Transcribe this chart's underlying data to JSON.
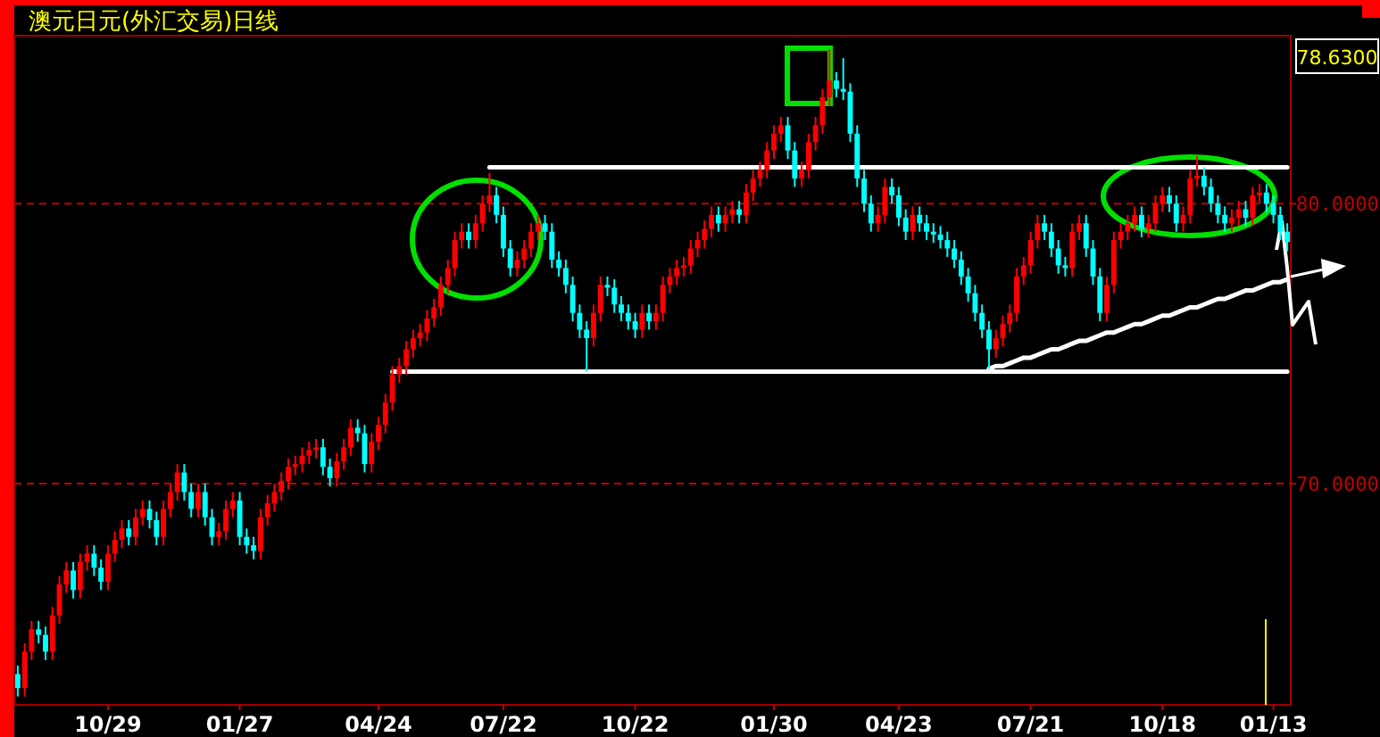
{
  "chart_data": {
    "type": "candlestick",
    "title": "澳元日元(外汇交易)日线",
    "categories": [
      null,
      null,
      null,
      null,
      null,
      null,
      null,
      null,
      null,
      null,
      null,
      null,
      null,
      "10/29",
      null,
      null,
      null,
      null,
      null,
      null,
      null,
      null,
      null,
      null,
      null,
      null,
      null,
      null,
      null,
      null,
      null,
      null,
      "01/27",
      null,
      null,
      null,
      null,
      null,
      null,
      null,
      null,
      null,
      null,
      null,
      null,
      null,
      null,
      null,
      null,
      null,
      null,
      null,
      "04/24",
      null,
      null,
      null,
      null,
      null,
      null,
      null,
      null,
      null,
      null,
      null,
      null,
      null,
      null,
      null,
      null,
      null,
      "07/22",
      null,
      null,
      null,
      null,
      null,
      null,
      null,
      null,
      null,
      null,
      null,
      null,
      null,
      null,
      null,
      null,
      null,
      null,
      "10/22",
      null,
      null,
      null,
      null,
      null,
      null,
      null,
      null,
      null,
      null,
      null,
      null,
      null,
      null,
      null,
      null,
      null,
      null,
      null,
      "01/30",
      null,
      null,
      null,
      null,
      null,
      null,
      null,
      null,
      null,
      null,
      null,
      null,
      null,
      null,
      null,
      null,
      null,
      "04/23",
      null,
      null,
      null,
      null,
      null,
      null,
      null,
      null,
      null,
      null,
      null,
      null,
      null,
      null,
      null,
      null,
      null,
      null,
      "07/21",
      null,
      null,
      null,
      null,
      null,
      null,
      null,
      null,
      null,
      null,
      null,
      null,
      null,
      null,
      null,
      null,
      null,
      null,
      "10/18",
      null,
      null,
      null,
      null,
      null,
      null,
      null,
      null,
      null,
      null,
      null,
      null,
      null,
      null,
      null,
      "01/13",
      null,
      null
    ],
    "ohlc": [
      [
        63.2,
        63.5,
        62.4,
        62.7
      ],
      [
        62.7,
        64.3,
        62.4,
        64.0
      ],
      [
        64.0,
        65.1,
        63.7,
        64.8
      ],
      [
        64.8,
        65.1,
        64.3,
        64.6
      ],
      [
        64.6,
        64.9,
        63.7,
        64.0
      ],
      [
        64.0,
        65.6,
        63.7,
        65.3
      ],
      [
        65.3,
        66.7,
        65.0,
        66.4
      ],
      [
        66.4,
        67.2,
        66.1,
        66.9
      ],
      [
        66.9,
        67.2,
        65.9,
        66.2
      ],
      [
        66.2,
        67.5,
        65.9,
        67.2
      ],
      [
        67.2,
        67.8,
        66.9,
        67.5
      ],
      [
        67.5,
        67.8,
        66.7,
        67.0
      ],
      [
        67.0,
        67.3,
        66.2,
        66.5
      ],
      [
        66.5,
        67.8,
        66.2,
        67.5
      ],
      [
        67.5,
        68.3,
        67.2,
        68.0
      ],
      [
        68.0,
        68.7,
        67.7,
        68.4
      ],
      [
        68.4,
        68.7,
        67.8,
        68.1
      ],
      [
        68.1,
        69.1,
        67.8,
        68.8
      ],
      [
        68.8,
        69.4,
        68.5,
        69.1
      ],
      [
        69.1,
        69.4,
        68.4,
        68.7
      ],
      [
        68.7,
        69.0,
        67.8,
        68.1
      ],
      [
        68.1,
        69.4,
        67.8,
        69.1
      ],
      [
        69.1,
        70.0,
        68.8,
        69.7
      ],
      [
        69.7,
        70.7,
        69.4,
        70.4
      ],
      [
        70.4,
        70.7,
        69.4,
        69.7
      ],
      [
        69.7,
        70.0,
        68.8,
        69.1
      ],
      [
        69.1,
        70.0,
        68.8,
        69.7
      ],
      [
        69.7,
        70.0,
        68.5,
        68.8
      ],
      [
        68.8,
        69.1,
        67.8,
        68.1
      ],
      [
        68.1,
        68.6,
        67.8,
        68.3
      ],
      [
        68.3,
        69.4,
        68.0,
        69.1
      ],
      [
        69.1,
        69.7,
        68.8,
        69.4
      ],
      [
        69.4,
        69.7,
        67.8,
        68.1
      ],
      [
        68.1,
        68.4,
        67.5,
        67.8
      ],
      [
        67.8,
        68.1,
        67.3,
        67.6
      ],
      [
        67.6,
        69.1,
        67.3,
        68.8
      ],
      [
        68.8,
        69.6,
        68.5,
        69.3
      ],
      [
        69.3,
        70.0,
        69.0,
        69.7
      ],
      [
        69.7,
        70.4,
        69.4,
        70.1
      ],
      [
        70.1,
        70.9,
        69.8,
        70.6
      ],
      [
        70.6,
        71.0,
        70.3,
        70.7
      ],
      [
        70.7,
        71.3,
        70.4,
        71.0
      ],
      [
        71.0,
        71.5,
        70.7,
        71.2
      ],
      [
        71.2,
        71.6,
        70.9,
        71.3
      ],
      [
        71.3,
        71.6,
        70.3,
        70.6
      ],
      [
        70.6,
        70.9,
        69.9,
        70.2
      ],
      [
        70.2,
        71.1,
        69.9,
        70.8
      ],
      [
        70.8,
        71.6,
        70.5,
        71.3
      ],
      [
        71.3,
        72.3,
        71.0,
        72.0
      ],
      [
        72.0,
        72.3,
        71.5,
        71.8
      ],
      [
        71.8,
        72.1,
        70.4,
        70.7
      ],
      [
        70.7,
        71.8,
        70.4,
        71.5
      ],
      [
        71.5,
        72.4,
        71.2,
        72.1
      ],
      [
        72.1,
        73.2,
        71.8,
        72.9
      ],
      [
        72.9,
        74.2,
        72.6,
        73.9
      ],
      [
        73.9,
        74.5,
        73.6,
        74.2
      ],
      [
        74.2,
        75.1,
        73.9,
        74.8
      ],
      [
        74.8,
        75.5,
        74.5,
        75.2
      ],
      [
        75.2,
        75.7,
        74.9,
        75.4
      ],
      [
        75.4,
        76.2,
        75.1,
        75.9
      ],
      [
        75.9,
        76.6,
        75.6,
        76.3
      ],
      [
        76.3,
        77.4,
        76.0,
        77.1
      ],
      [
        77.1,
        78.0,
        76.8,
        77.7
      ],
      [
        77.7,
        79.0,
        77.4,
        78.7
      ],
      [
        78.7,
        79.3,
        78.4,
        79.0
      ],
      [
        79.0,
        79.3,
        78.4,
        78.7
      ],
      [
        78.7,
        79.6,
        78.4,
        79.3
      ],
      [
        79.3,
        80.3,
        79.0,
        80.0
      ],
      [
        80.0,
        81.1,
        79.7,
        80.3
      ],
      [
        80.3,
        80.6,
        79.3,
        79.6
      ],
      [
        79.6,
        79.9,
        78.1,
        78.4
      ],
      [
        78.4,
        78.7,
        77.4,
        77.7
      ],
      [
        77.7,
        78.3,
        77.4,
        78.0
      ],
      [
        78.0,
        78.7,
        77.7,
        78.4
      ],
      [
        78.4,
        79.3,
        78.1,
        79.0
      ],
      [
        79.0,
        79.6,
        78.7,
        79.3
      ],
      [
        79.3,
        79.6,
        78.7,
        79.0
      ],
      [
        79.0,
        79.3,
        77.7,
        78.0
      ],
      [
        78.0,
        78.3,
        77.4,
        77.7
      ],
      [
        77.7,
        78.0,
        76.8,
        77.1
      ],
      [
        77.1,
        77.4,
        75.8,
        76.1
      ],
      [
        76.1,
        76.4,
        75.2,
        75.5
      ],
      [
        75.5,
        75.8,
        74.0,
        75.2
      ],
      [
        75.2,
        76.4,
        74.9,
        76.1
      ],
      [
        76.1,
        77.4,
        75.8,
        77.1
      ],
      [
        77.1,
        77.4,
        76.7,
        77.0
      ],
      [
        77.0,
        77.3,
        76.1,
        76.4
      ],
      [
        76.4,
        76.7,
        75.8,
        76.1
      ],
      [
        76.1,
        76.4,
        75.5,
        75.8
      ],
      [
        75.8,
        76.1,
        75.2,
        75.5
      ],
      [
        75.5,
        76.4,
        75.2,
        76.1
      ],
      [
        76.1,
        76.4,
        75.5,
        75.8
      ],
      [
        75.8,
        76.4,
        75.5,
        76.1
      ],
      [
        76.1,
        77.4,
        75.8,
        77.1
      ],
      [
        77.1,
        77.7,
        76.8,
        77.4
      ],
      [
        77.4,
        78.0,
        77.1,
        77.7
      ],
      [
        77.7,
        78.1,
        77.4,
        77.8
      ],
      [
        77.8,
        78.7,
        77.5,
        78.4
      ],
      [
        78.4,
        79.0,
        78.1,
        78.7
      ],
      [
        78.7,
        79.4,
        78.4,
        79.1
      ],
      [
        79.1,
        79.9,
        78.8,
        79.6
      ],
      [
        79.6,
        79.9,
        79.0,
        79.3
      ],
      [
        79.3,
        79.9,
        79.0,
        79.6
      ],
      [
        79.6,
        80.1,
        79.3,
        79.8
      ],
      [
        79.8,
        80.1,
        79.3,
        79.6
      ],
      [
        79.6,
        80.7,
        79.3,
        80.4
      ],
      [
        80.4,
        81.2,
        80.1,
        80.9
      ],
      [
        80.9,
        81.5,
        80.6,
        81.2
      ],
      [
        81.2,
        82.2,
        80.9,
        81.9
      ],
      [
        81.9,
        82.8,
        81.6,
        82.5
      ],
      [
        82.5,
        83.1,
        82.2,
        82.8
      ],
      [
        82.8,
        83.1,
        81.6,
        81.9
      ],
      [
        81.9,
        82.2,
        80.6,
        80.9
      ],
      [
        80.9,
        81.5,
        80.6,
        81.2
      ],
      [
        81.2,
        82.5,
        80.9,
        82.2
      ],
      [
        82.2,
        83.1,
        81.9,
        82.8
      ],
      [
        82.8,
        84.1,
        82.5,
        83.8
      ],
      [
        83.8,
        85.5,
        83.5,
        84.4
      ],
      [
        84.4,
        84.7,
        83.8,
        84.1
      ],
      [
        84.1,
        85.2,
        83.7,
        84.0
      ],
      [
        84.0,
        84.3,
        82.2,
        82.5
      ],
      [
        82.5,
        82.8,
        80.6,
        80.9
      ],
      [
        80.9,
        81.2,
        79.7,
        80.0
      ],
      [
        80.0,
        80.3,
        79.0,
        79.3
      ],
      [
        79.3,
        79.9,
        79.0,
        79.6
      ],
      [
        79.6,
        80.9,
        79.3,
        80.6
      ],
      [
        80.6,
        80.9,
        80.0,
        80.3
      ],
      [
        80.3,
        80.6,
        79.2,
        79.5
      ],
      [
        79.5,
        79.8,
        78.7,
        79.0
      ],
      [
        79.0,
        79.9,
        78.7,
        79.6
      ],
      [
        79.6,
        79.9,
        79.0,
        79.3
      ],
      [
        79.3,
        79.6,
        78.7,
        79.0
      ],
      [
        79.0,
        79.3,
        78.6,
        78.9
      ],
      [
        78.9,
        79.2,
        78.4,
        78.7
      ],
      [
        78.7,
        79.0,
        78.1,
        78.4
      ],
      [
        78.4,
        78.7,
        77.7,
        78.0
      ],
      [
        78.0,
        78.3,
        77.1,
        77.4
      ],
      [
        77.4,
        77.7,
        76.5,
        76.8
      ],
      [
        76.8,
        77.1,
        75.8,
        76.1
      ],
      [
        76.1,
        76.4,
        75.2,
        75.5
      ],
      [
        75.5,
        75.8,
        74.1,
        74.8
      ],
      [
        74.8,
        75.5,
        74.5,
        75.2
      ],
      [
        75.2,
        76.0,
        74.9,
        75.7
      ],
      [
        75.7,
        76.4,
        75.4,
        76.1
      ],
      [
        76.1,
        77.7,
        75.8,
        77.4
      ],
      [
        77.4,
        78.1,
        77.1,
        77.8
      ],
      [
        77.8,
        79.0,
        77.5,
        78.7
      ],
      [
        78.7,
        79.6,
        78.4,
        79.3
      ],
      [
        79.3,
        79.6,
        78.7,
        79.0
      ],
      [
        79.0,
        79.3,
        78.1,
        78.4
      ],
      [
        78.4,
        78.7,
        77.5,
        77.8
      ],
      [
        77.8,
        78.1,
        77.4,
        77.7
      ],
      [
        77.7,
        79.3,
        77.4,
        79.0
      ],
      [
        79.0,
        79.6,
        78.7,
        79.3
      ],
      [
        79.3,
        79.6,
        78.1,
        78.4
      ],
      [
        78.4,
        78.7,
        77.1,
        77.4
      ],
      [
        77.4,
        77.7,
        75.8,
        76.1
      ],
      [
        76.1,
        77.4,
        75.8,
        77.1
      ],
      [
        77.1,
        79.0,
        76.8,
        78.7
      ],
      [
        78.7,
        79.3,
        78.4,
        79.0
      ],
      [
        79.0,
        79.6,
        78.7,
        79.3
      ],
      [
        79.3,
        79.9,
        79.0,
        79.6
      ],
      [
        79.6,
        79.9,
        78.8,
        79.1
      ],
      [
        79.1,
        79.6,
        78.8,
        79.3
      ],
      [
        79.3,
        80.3,
        79.0,
        80.0
      ],
      [
        80.0,
        80.6,
        79.7,
        80.3
      ],
      [
        80.3,
        80.6,
        79.7,
        80.0
      ],
      [
        80.0,
        80.3,
        79.0,
        79.3
      ],
      [
        79.3,
        79.9,
        79.0,
        79.6
      ],
      [
        79.6,
        81.2,
        79.3,
        80.9
      ],
      [
        80.9,
        81.7,
        80.6,
        81.0
      ],
      [
        81.0,
        81.3,
        80.3,
        80.6
      ],
      [
        80.6,
        80.9,
        79.7,
        80.0
      ],
      [
        80.0,
        80.3,
        79.3,
        79.6
      ],
      [
        79.6,
        79.9,
        79.0,
        79.3
      ],
      [
        79.3,
        79.8,
        79.0,
        79.5
      ],
      [
        79.5,
        80.1,
        79.2,
        79.8
      ],
      [
        79.8,
        80.1,
        79.2,
        79.5
      ],
      [
        79.5,
        80.6,
        79.2,
        80.3
      ],
      [
        80.3,
        80.7,
        80.0,
        80.4
      ],
      [
        80.4,
        80.7,
        79.7,
        80.0
      ],
      [
        80.0,
        80.3,
        79.3,
        79.6
      ],
      [
        79.6,
        79.9,
        78.7,
        79.0
      ],
      [
        79.0,
        79.3,
        78.3,
        78.63
      ]
    ],
    "colors": [
      "#00ffff",
      "#ff0000",
      "#ff0000",
      "#00ffff",
      "#00ffff",
      "#ff0000",
      "#ff0000",
      "#ff0000",
      "#00ffff",
      "#ff0000",
      "#ff0000",
      "#00ffff",
      "#00ffff",
      "#ff0000",
      "#ff0000",
      "#ff0000",
      "#00ffff",
      "#ff0000",
      "#ff0000",
      "#00ffff",
      "#00ffff",
      "#ff0000",
      "#ff0000",
      "#ff0000",
      "#00ffff",
      "#00ffff",
      "#ff0000",
      "#00ffff",
      "#00ffff",
      "#ff0000",
      "#ff0000",
      "#ff0000",
      "#00ffff",
      "#00ffff",
      "#00ffff",
      "#ff0000",
      "#ff0000",
      "#ff0000",
      "#ff0000",
      "#ff0000",
      "#ff0000",
      "#ff0000",
      "#ff0000",
      "#ff0000",
      "#00ffff",
      "#00ffff",
      "#ff0000",
      "#ff0000",
      "#ff0000",
      "#00ffff",
      "#00ffff",
      "#ff0000",
      "#ff0000",
      "#ff0000",
      "#ff0000",
      "#ff0000",
      "#ff0000",
      "#ff0000",
      "#ff0000",
      "#ff0000",
      "#ff0000",
      "#ff0000",
      "#ff0000",
      "#ff0000",
      "#ff0000",
      "#00ffff",
      "#ff0000",
      "#ff0000",
      "#ff0000",
      "#00ffff",
      "#00ffff",
      "#00ffff",
      "#ff0000",
      "#ff0000",
      "#ff0000",
      "#ff0000",
      "#00ffff",
      "#00ffff",
      "#00ffff",
      "#00ffff",
      "#00ffff",
      "#00ffff",
      "#00ffff",
      "#ff0000",
      "#ff0000",
      "#00ffff",
      "#00ffff",
      "#00ffff",
      "#00ffff",
      "#00ffff",
      "#ff0000",
      "#00ffff",
      "#ff0000",
      "#ff0000",
      "#ff0000",
      "#ff0000",
      "#ff0000",
      "#ff0000",
      "#ff0000",
      "#ff0000",
      "#ff0000",
      "#00ffff",
      "#ff0000",
      "#ff0000",
      "#00ffff",
      "#ff0000",
      "#ff0000",
      "#ff0000",
      "#ff0000",
      "#ff0000",
      "#ff0000",
      "#00ffff",
      "#00ffff",
      "#ff0000",
      "#ff0000",
      "#ff0000",
      "#ff0000",
      "#ff0000",
      "#00ffff",
      "#00ffff",
      "#00ffff",
      "#00ffff",
      "#00ffff",
      "#00ffff",
      "#ff0000",
      "#ff0000",
      "#00ffff",
      "#00ffff",
      "#00ffff",
      "#ff0000",
      "#00ffff",
      "#00ffff",
      "#00ffff",
      "#00ffff",
      "#00ffff",
      "#00ffff",
      "#00ffff",
      "#00ffff",
      "#00ffff",
      "#00ffff",
      "#00ffff",
      "#ff0000",
      "#ff0000",
      "#ff0000",
      "#ff0000",
      "#ff0000",
      "#ff0000",
      "#ff0000",
      "#00ffff",
      "#00ffff",
      "#00ffff",
      "#00ffff",
      "#ff0000",
      "#ff0000",
      "#00ffff",
      "#00ffff",
      "#00ffff",
      "#ff0000",
      "#ff0000",
      "#ff0000",
      "#ff0000",
      "#ff0000",
      "#00ffff",
      "#ff0000",
      "#ff0000",
      "#ff0000",
      "#00ffff",
      "#00ffff",
      "#ff0000",
      "#ff0000",
      "#ff0000",
      "#00ffff",
      "#00ffff",
      "#00ffff",
      "#00ffff",
      "#ff0000",
      "#ff0000",
      "#00ffff",
      "#ff0000",
      "#ff0000",
      "#00ffff",
      "#00ffff",
      "#00ffff",
      "#00ffff"
    ],
    "series": [
      {
        "type": "line",
        "color": "#ffffff",
        "values": [
          null,
          null,
          null,
          null,
          null,
          null,
          null,
          null,
          null,
          null,
          null,
          null,
          null,
          null,
          null,
          null,
          null,
          null,
          null,
          null,
          null,
          null,
          null,
          null,
          null,
          null,
          null,
          null,
          null,
          null,
          null,
          null,
          null,
          null,
          null,
          null,
          null,
          null,
          null,
          null,
          null,
          null,
          null,
          null,
          null,
          null,
          null,
          null,
          null,
          null,
          null,
          null,
          null,
          null,
          null,
          null,
          null,
          null,
          null,
          null,
          null,
          null,
          null,
          null,
          null,
          null,
          null,
          null,
          81.3,
          81.3,
          81.3,
          81.3,
          81.3,
          81.3,
          81.3,
          81.3,
          81.3,
          81.3,
          81.3,
          81.3,
          81.3,
          81.3,
          81.3,
          81.3,
          81.3,
          81.3,
          81.3,
          81.3,
          81.3,
          81.3,
          81.3,
          81.3,
          81.3,
          81.3,
          81.3,
          81.3,
          81.3,
          81.3,
          81.3,
          81.3,
          81.3,
          81.3,
          81.3,
          81.3,
          81.3,
          81.3,
          81.3,
          81.3,
          81.3,
          81.3,
          81.3,
          81.3,
          81.3,
          81.3,
          81.3,
          81.3,
          81.3,
          81.3,
          81.3,
          81.3,
          81.3,
          81.3,
          81.3,
          81.3,
          81.3,
          81.3,
          81.3,
          81.3,
          81.3,
          81.3,
          81.3,
          81.3,
          81.3,
          81.3,
          81.3,
          81.3,
          81.3,
          81.3,
          81.3,
          81.3,
          81.3,
          81.3,
          81.3,
          81.3,
          81.3,
          81.3,
          81.3,
          81.3,
          81.3,
          81.3,
          81.3,
          81.3,
          81.3,
          81.3,
          81.3,
          81.3,
          81.3,
          81.3,
          81.3,
          81.3,
          81.3,
          81.3,
          81.3,
          81.3,
          81.3,
          81.3,
          81.3,
          81.3,
          81.3,
          81.3,
          81.3,
          81.3,
          81.3,
          81.3,
          81.3,
          81.3,
          81.3,
          81.3,
          81.3,
          81.3,
          81.3,
          81.3,
          81.3,
          81.3
        ]
      },
      {
        "type": "line",
        "color": "#ffffff",
        "values": [
          null,
          null,
          null,
          null,
          null,
          null,
          null,
          null,
          null,
          null,
          null,
          null,
          null,
          null,
          null,
          null,
          null,
          null,
          null,
          null,
          null,
          null,
          null,
          null,
          null,
          null,
          null,
          null,
          null,
          null,
          null,
          null,
          null,
          null,
          null,
          null,
          null,
          null,
          null,
          null,
          null,
          null,
          null,
          null,
          null,
          null,
          null,
          null,
          null,
          null,
          null,
          null,
          null,
          null,
          74,
          74,
          74,
          74,
          74,
          74,
          74,
          74,
          74,
          74,
          74,
          74,
          74,
          74,
          74,
          74,
          74,
          74,
          74,
          74,
          74,
          74,
          74,
          74,
          74,
          74,
          74,
          74,
          74,
          74,
          74,
          74,
          74,
          74,
          74,
          74,
          74,
          74,
          74,
          74,
          74,
          74,
          74,
          74,
          74,
          74,
          74,
          74,
          74,
          74,
          74,
          74,
          74,
          74,
          74,
          74,
          74,
          74,
          74,
          74,
          74,
          74,
          74,
          74,
          74,
          74,
          74,
          74,
          74,
          74,
          74,
          74,
          74,
          74,
          74,
          74,
          74,
          74,
          74,
          74,
          74,
          74,
          74,
          74,
          74,
          74,
          74,
          74,
          74,
          74,
          74,
          74,
          74,
          74,
          74,
          74,
          74,
          74,
          74,
          74,
          74,
          74,
          74,
          74,
          74,
          74,
          74,
          74,
          74,
          74,
          74,
          74,
          74,
          74,
          74,
          74,
          74,
          74,
          74,
          74,
          74,
          74,
          74,
          74,
          74,
          74,
          74,
          74,
          74,
          74
        ]
      },
      {
        "type": "line",
        "color": "#ffffff",
        "values": [
          null,
          null,
          null,
          null,
          null,
          null,
          null,
          null,
          null,
          null,
          null,
          null,
          null,
          null,
          null,
          null,
          null,
          null,
          null,
          null,
          null,
          null,
          null,
          null,
          null,
          null,
          null,
          null,
          null,
          null,
          null,
          null,
          null,
          null,
          null,
          null,
          null,
          null,
          null,
          null,
          null,
          null,
          null,
          null,
          null,
          null,
          null,
          null,
          null,
          null,
          null,
          null,
          null,
          null,
          null,
          null,
          null,
          null,
          null,
          null,
          null,
          null,
          null,
          null,
          null,
          null,
          null,
          null,
          null,
          null,
          null,
          null,
          null,
          null,
          null,
          null,
          null,
          null,
          null,
          null,
          null,
          null,
          null,
          null,
          null,
          null,
          null,
          null,
          null,
          null,
          null,
          null,
          null,
          null,
          null,
          null,
          null,
          null,
          null,
          null,
          null,
          null,
          null,
          null,
          null,
          null,
          null,
          null,
          null,
          null,
          null,
          null,
          null,
          null,
          null,
          null,
          null,
          null,
          null,
          null,
          null,
          null,
          null,
          null,
          null,
          null,
          null,
          null,
          null,
          null,
          null,
          null,
          null,
          null,
          null,
          null,
          null,
          null,
          null,
          null,
          74.1,
          74.2,
          74.2,
          74.3,
          74.4,
          74.5,
          74.5,
          74.6,
          74.7,
          74.8,
          74.8,
          74.9,
          75.0,
          75.1,
          75.1,
          75.2,
          75.3,
          75.4,
          75.4,
          75.5,
          75.6,
          75.7,
          75.7,
          75.8,
          75.9,
          76.0,
          76.0,
          76.1,
          76.2,
          76.3,
          76.3,
          76.4,
          76.5,
          76.6,
          76.6,
          76.7,
          76.8,
          76.9,
          76.9,
          77.0,
          77.1,
          77.2,
          77.2,
          77.3
        ]
      }
    ],
    "ylim": [
      62.1,
      86.0
    ],
    "yticks": [
      {
        "value": 80,
        "label": "80.0000"
      },
      {
        "value": 70,
        "label": "70.0000"
      }
    ],
    "grid": "y",
    "annotations": [
      "78.6300"
    ]
  }
}
